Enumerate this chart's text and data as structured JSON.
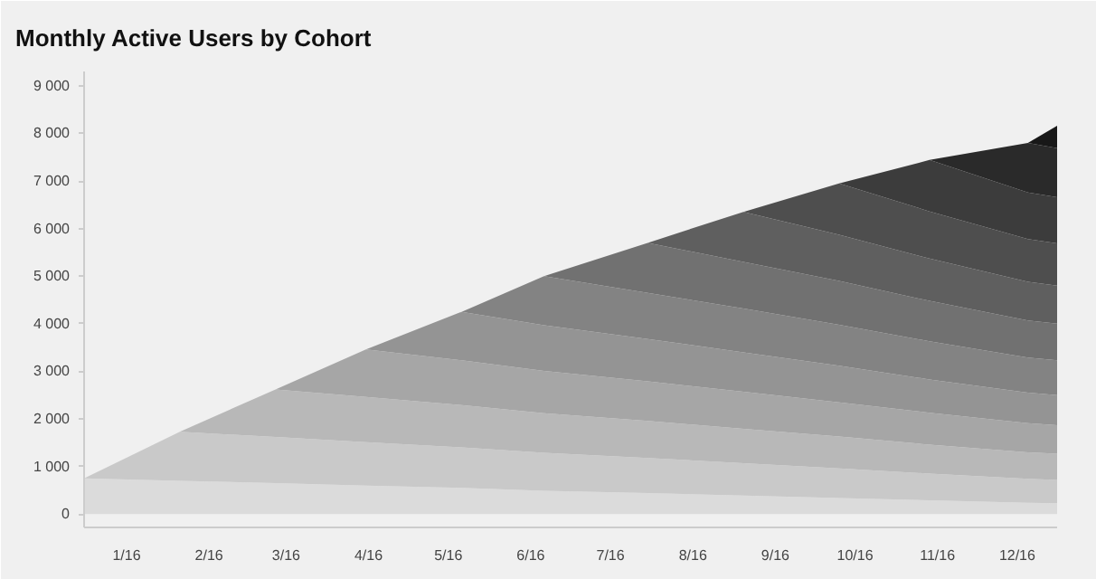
{
  "chart_data": {
    "type": "area",
    "stacked": true,
    "title": "Monthly Active Users by Cohort",
    "x": [
      "2015-12-16",
      "2016-01-21",
      "2016-02-26",
      "2016-03-31",
      "2016-05-06",
      "2016-06-06",
      "2016-07-15",
      "2016-08-20",
      "2016-09-25",
      "2016-10-29",
      "2016-12-05",
      "2016-12-16"
    ],
    "xlim": [
      "2015-12-16",
      "2016-12-16"
    ],
    "xticks": [
      {
        "value": "2016-01-01",
        "label": "1/16"
      },
      {
        "value": "2016-02-01",
        "label": "2/16"
      },
      {
        "value": "2016-03-01",
        "label": "3/16"
      },
      {
        "value": "2016-04-01",
        "label": "4/16"
      },
      {
        "value": "2016-05-01",
        "label": "5/16"
      },
      {
        "value": "2016-06-01",
        "label": "6/16"
      },
      {
        "value": "2016-07-01",
        "label": "7/16"
      },
      {
        "value": "2016-08-01",
        "label": "8/16"
      },
      {
        "value": "2016-09-01",
        "label": "9/16"
      },
      {
        "value": "2016-10-01",
        "label": "10/16"
      },
      {
        "value": "2016-11-01",
        "label": "11/16"
      },
      {
        "value": "2016-12-01",
        "label": "12/16"
      }
    ],
    "ylim": [
      -280,
      9300
    ],
    "yticks": [
      0,
      {
        "value": 1000,
        "label": "1 000"
      },
      {
        "value": 2000,
        "label": "2 000"
      },
      {
        "value": 3000,
        "label": "3 000"
      },
      {
        "value": 4000,
        "label": "4 000"
      },
      {
        "value": 5000,
        "label": "5 000"
      },
      {
        "value": 6000,
        "label": "6 000"
      },
      {
        "value": 7000,
        "label": "7 000"
      },
      {
        "value": 8000,
        "label": "8 000"
      },
      {
        "value": 9000,
        "label": "9 000"
      }
    ],
    "grid": false,
    "series": [
      {
        "color": "#dbdbdb",
        "values": [
          750,
          700,
          650,
          600,
          550,
          490,
          440,
          390,
          340,
          290,
          240,
          230
        ]
      },
      {
        "color": "#c9c9c9",
        "values": [
          0,
          1030,
          970,
          910,
          850,
          800,
          740,
          680,
          620,
          560,
          500,
          490
        ]
      },
      {
        "color": "#b8b8b8",
        "values": [
          null,
          0,
          1000,
          950,
          890,
          830,
          780,
          720,
          670,
          610,
          560,
          550
        ]
      },
      {
        "color": "#a6a6a6",
        "values": [
          null,
          null,
          0,
          1000,
          940,
          890,
          830,
          780,
          720,
          670,
          610,
          600
        ]
      },
      {
        "color": "#949494",
        "values": [
          null,
          null,
          null,
          0,
          1020,
          960,
          890,
          830,
          770,
          700,
          640,
          630
        ]
      },
      {
        "color": "#838383",
        "values": [
          null,
          null,
          null,
          null,
          0,
          1030,
          970,
          920,
          860,
          800,
          740,
          730
        ]
      },
      {
        "color": "#717171",
        "values": [
          null,
          null,
          null,
          null,
          null,
          0,
          1050,
          980,
          920,
          850,
          780,
          770
        ]
      },
      {
        "color": "#5f5f5f",
        "values": [
          null,
          null,
          null,
          null,
          null,
          null,
          0,
          1050,
          970,
          890,
          810,
          800
        ]
      },
      {
        "color": "#4e4e4e",
        "values": [
          null,
          null,
          null,
          null,
          null,
          null,
          null,
          0,
          1080,
          990,
          900,
          890
        ]
      },
      {
        "color": "#3c3c3c",
        "values": [
          null,
          null,
          null,
          null,
          null,
          null,
          null,
          null,
          0,
          1080,
          980,
          970
        ]
      },
      {
        "color": "#2a2a2a",
        "values": [
          null,
          null,
          null,
          null,
          null,
          null,
          null,
          null,
          null,
          0,
          1040,
          1030
        ]
      },
      {
        "color": "#181818",
        "values": [
          null,
          null,
          null,
          null,
          null,
          null,
          null,
          null,
          null,
          null,
          0,
          470
        ]
      }
    ]
  }
}
